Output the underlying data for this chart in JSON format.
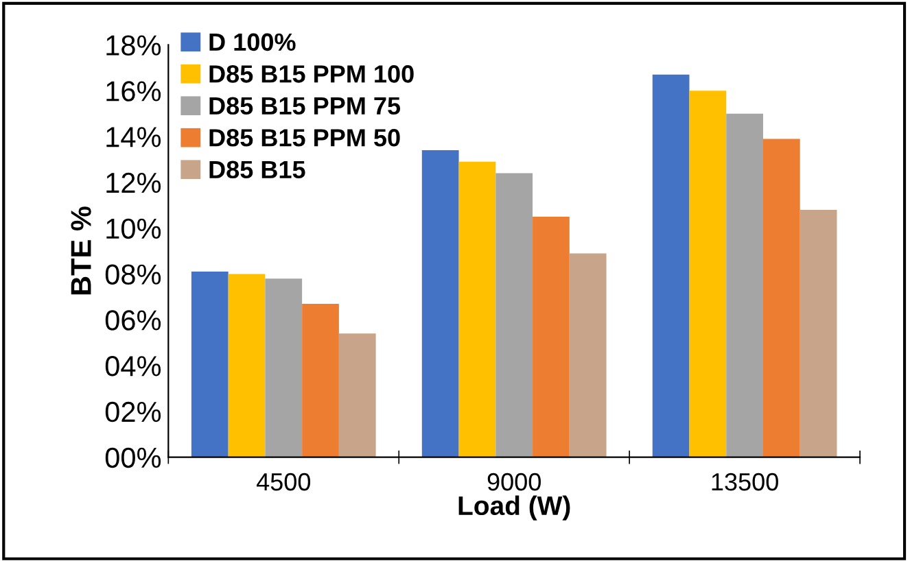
{
  "chart_data": {
    "type": "bar",
    "ylabel": "BTE %",
    "xlabel": "Load (W)",
    "categories": [
      "4500",
      "9000",
      "13500"
    ],
    "series": [
      {
        "name": "D 100%",
        "color": "#4472c4",
        "values": [
          8.1,
          13.4,
          16.7
        ]
      },
      {
        "name": "D85 B15 PPM 100",
        "color": "#ffc000",
        "values": [
          8.0,
          12.9,
          16.0
        ]
      },
      {
        "name": "D85 B15 PPM 75",
        "color": "#a5a5a5",
        "values": [
          7.8,
          12.4,
          15.0
        ]
      },
      {
        "name": "D85 B15 PPM 50",
        "color": "#ed7d31",
        "values": [
          6.7,
          10.5,
          13.9
        ]
      },
      {
        "name": "D85 B15",
        "color": "#c8a48a",
        "values": [
          5.4,
          8.9,
          10.8
        ]
      }
    ],
    "ylim": [
      0,
      18
    ],
    "yticks": [
      {
        "value": 0,
        "label": "00%"
      },
      {
        "value": 2,
        "label": "02%"
      },
      {
        "value": 4,
        "label": "04%"
      },
      {
        "value": 6,
        "label": "06%"
      },
      {
        "value": 8,
        "label": "08%"
      },
      {
        "value": 10,
        "label": "10%"
      },
      {
        "value": 12,
        "label": "12%"
      },
      {
        "value": 14,
        "label": "14%"
      },
      {
        "value": 16,
        "label": "16%"
      },
      {
        "value": 18,
        "label": "18%"
      }
    ],
    "grid": false,
    "legend": "top left"
  }
}
